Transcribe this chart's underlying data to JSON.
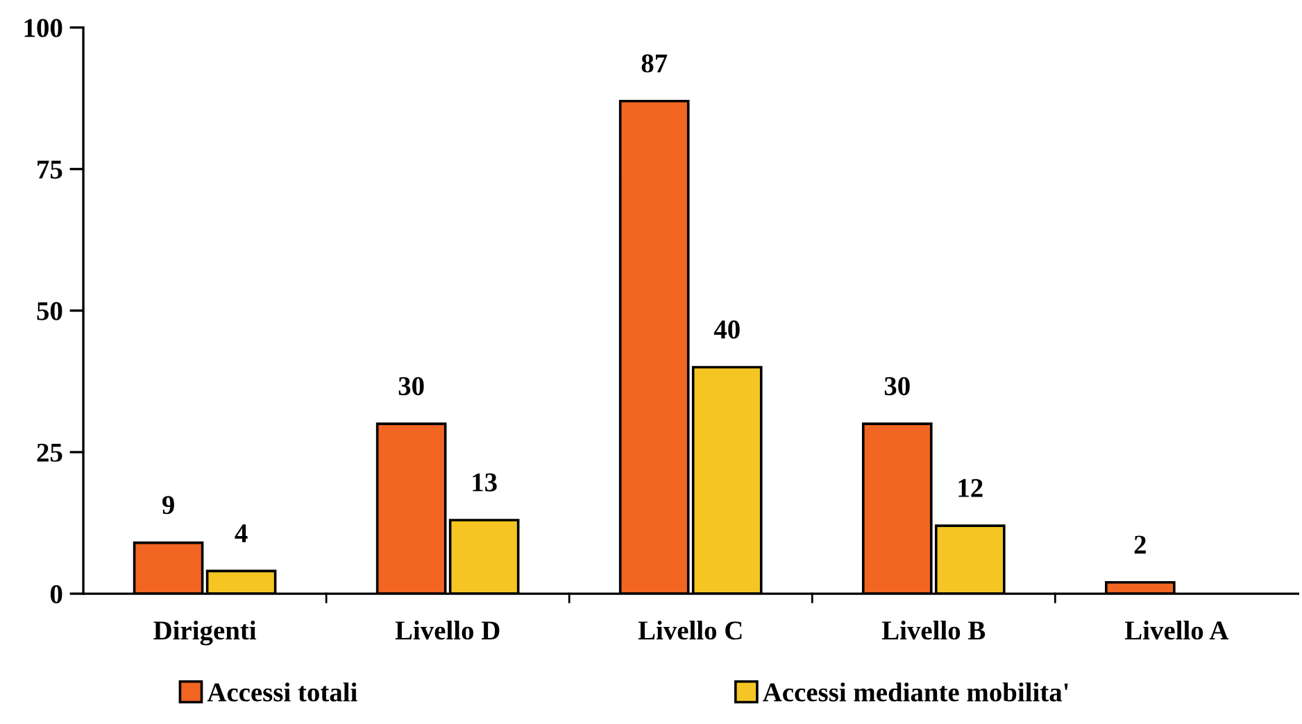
{
  "chart_data": {
    "type": "bar",
    "categories": [
      "Dirigenti",
      "Livello D",
      "Livello C",
      "Livello B",
      "Livello A"
    ],
    "series": [
      {
        "name": "Accessi totali",
        "color": "#f26522",
        "values": [
          9,
          30,
          87,
          30,
          2
        ]
      },
      {
        "name": "Accessi mediante mobilita'",
        "color": "#f5c623",
        "values": [
          4,
          13,
          40,
          12,
          null
        ]
      }
    ],
    "ylim": [
      0,
      100
    ],
    "yticks": [
      0,
      25,
      50,
      75,
      100
    ],
    "grid": false,
    "legend": "bottom",
    "data_labels": true
  }
}
